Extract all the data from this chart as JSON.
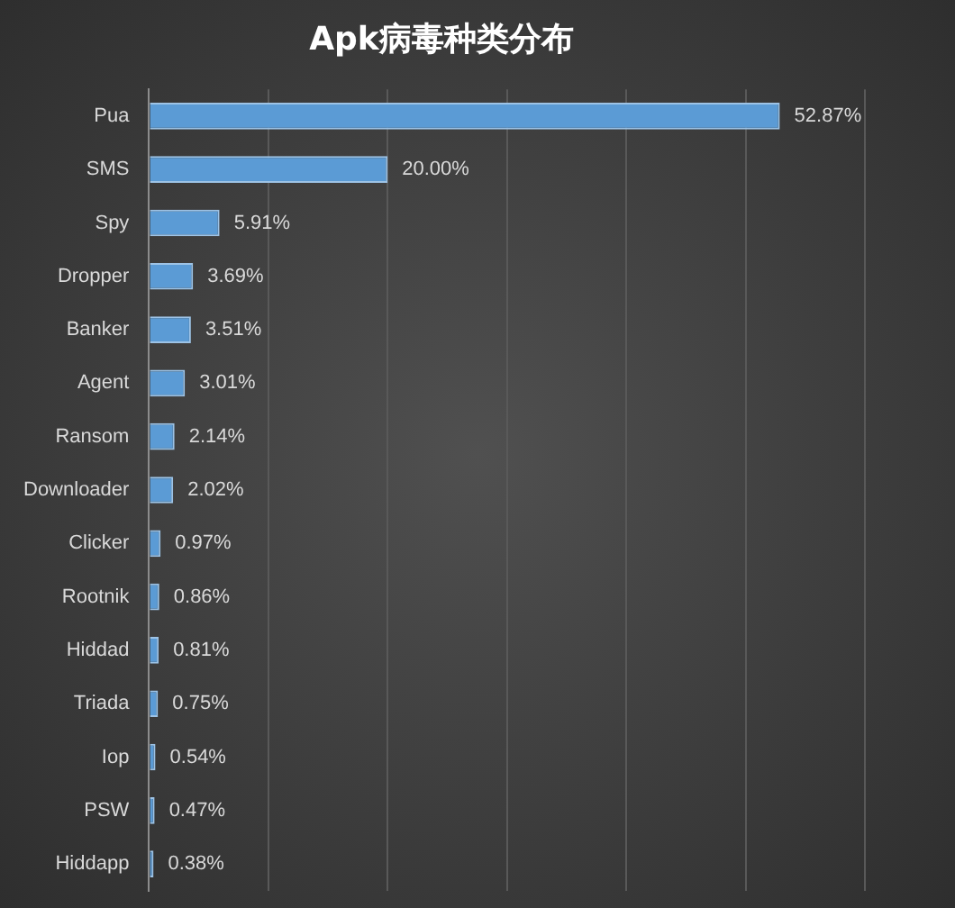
{
  "chart_data": {
    "type": "bar",
    "orientation": "horizontal",
    "title": "Apk病毒种类分布",
    "categories": [
      "Pua",
      "SMS",
      "Spy",
      "Dropper",
      "Banker",
      "Agent",
      "Ransom",
      "Downloader",
      "Clicker",
      "Rootnik",
      "Hiddad",
      "Triada",
      "Iop",
      "PSW",
      "Hiddapp"
    ],
    "values": [
      52.87,
      20.0,
      5.91,
      3.69,
      3.51,
      3.01,
      2.14,
      2.02,
      0.97,
      0.86,
      0.81,
      0.75,
      0.54,
      0.47,
      0.38
    ],
    "value_labels": [
      "52.87%",
      "20.00%",
      "5.91%",
      "3.69%",
      "3.51%",
      "3.01%",
      "2.14%",
      "2.02%",
      "0.97%",
      "0.86%",
      "0.81%",
      "0.75%",
      "0.54%",
      "0.47%",
      "0.38%"
    ],
    "color": "#5b9bd5",
    "xlim": [
      0,
      60
    ],
    "xticks": [
      {
        "value": 0,
        "label": null
      },
      {
        "value": 10,
        "label": null
      },
      {
        "value": 20,
        "label": null
      },
      {
        "value": 30,
        "label": null
      },
      {
        "value": 40,
        "label": null
      },
      {
        "value": 50,
        "label": null
      },
      {
        "value": 60,
        "label": null
      }
    ],
    "grid": "x",
    "legend": false
  }
}
